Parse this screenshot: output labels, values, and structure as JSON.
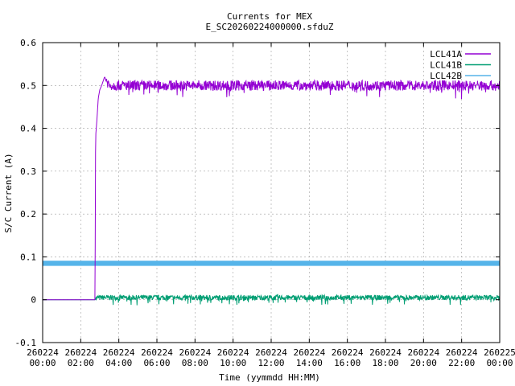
{
  "chart_data": {
    "type": "line",
    "title": "Currents for MEX",
    "subtitle": "E_SC20260224000000.sfduZ",
    "xlabel": "Time (yymmdd HH:MM)",
    "ylabel": "S/C Current (A)",
    "xlim_hours": [
      0,
      24
    ],
    "ylim": [
      -0.1,
      0.6
    ],
    "yticks": [
      "-0.1",
      "0",
      "0.1",
      "0.2",
      "0.3",
      "0.4",
      "0.5",
      "0.6"
    ],
    "xticks": [
      {
        "date": "260224",
        "time": "00:00"
      },
      {
        "date": "260224",
        "time": "02:00"
      },
      {
        "date": "260224",
        "time": "04:00"
      },
      {
        "date": "260224",
        "time": "06:00"
      },
      {
        "date": "260224",
        "time": "08:00"
      },
      {
        "date": "260224",
        "time": "10:00"
      },
      {
        "date": "260224",
        "time": "12:00"
      },
      {
        "date": "260224",
        "time": "14:00"
      },
      {
        "date": "260224",
        "time": "16:00"
      },
      {
        "date": "260224",
        "time": "18:00"
      },
      {
        "date": "260224",
        "time": "20:00"
      },
      {
        "date": "260224",
        "time": "22:00"
      },
      {
        "date": "260225",
        "time": "00:00"
      }
    ],
    "grid": true,
    "legend_position": "top-right",
    "series": [
      {
        "name": "LCL41A",
        "color": "#9400d3",
        "points": [
          [
            0,
            0.0
          ],
          [
            2.75,
            0.0
          ],
          [
            2.78,
            0.38
          ],
          [
            2.85,
            0.42
          ],
          [
            2.92,
            0.47
          ],
          [
            3.0,
            0.49
          ],
          [
            3.1,
            0.5
          ],
          [
            3.25,
            0.52
          ],
          [
            3.5,
            0.5
          ],
          [
            4,
            0.5
          ],
          [
            6,
            0.5
          ],
          [
            8,
            0.5
          ],
          [
            10,
            0.5
          ],
          [
            12,
            0.5
          ],
          [
            14,
            0.5
          ],
          [
            16,
            0.5
          ],
          [
            18,
            0.5
          ],
          [
            20,
            0.5
          ],
          [
            22,
            0.5
          ],
          [
            24,
            0.5
          ]
        ],
        "noise": 0.012
      },
      {
        "name": "LCL41B",
        "color": "#009e73",
        "points": [
          [
            0,
            0.0
          ],
          [
            2.75,
            0.0
          ],
          [
            2.8,
            0.005
          ],
          [
            4,
            0.005
          ],
          [
            8,
            0.005
          ],
          [
            12,
            0.005
          ],
          [
            16,
            0.005
          ],
          [
            20,
            0.005
          ],
          [
            24,
            0.005
          ]
        ],
        "noise": 0.006
      },
      {
        "name": "LCL42B",
        "color": "#56b4e9",
        "points": [
          [
            0,
            0.085
          ],
          [
            24,
            0.085
          ]
        ],
        "band": 0.006
      }
    ]
  }
}
